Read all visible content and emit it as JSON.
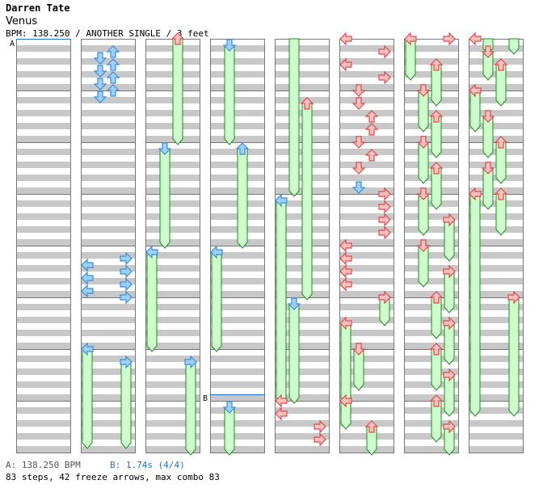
{
  "artist": "Darren Tate",
  "song": "Venus",
  "bpm_line": "BPM: 138.250 / ANOTHER SINGLE / 3 feet",
  "markers": {
    "a": "A",
    "b": "B"
  },
  "footer": {
    "bpm": "A: 138.250 BPM",
    "stop": "B: 1.74s (4/4)",
    "stats": "83 steps, 42 freeze arrows, max combo 83"
  },
  "colors": {
    "stripe": "#c8c8c8",
    "border": "#777777",
    "quarter_note": "#e04848",
    "eighth_note": "#3a8fd8",
    "freeze_fill": "#ccffcc",
    "freeze_border": "#228822",
    "marker_line": "#1f6fcf"
  },
  "chart_data": {
    "type": "step-chart",
    "lanes": [
      "left",
      "down",
      "up",
      "right"
    ],
    "columns": 8,
    "measures_per_column": 8,
    "notes": [
      {
        "col": 1,
        "lane": "up",
        "beat": 1,
        "kind": "8th"
      },
      {
        "col": 1,
        "lane": "down",
        "beat": 1.5,
        "kind": "8th"
      },
      {
        "col": 1,
        "lane": "up",
        "beat": 2,
        "kind": "8th"
      },
      {
        "col": 1,
        "lane": "down",
        "beat": 2.5,
        "kind": "8th"
      },
      {
        "col": 1,
        "lane": "up",
        "beat": 3,
        "kind": "8th"
      },
      {
        "col": 1,
        "lane": "down",
        "beat": 3.5,
        "kind": "8th"
      },
      {
        "col": 1,
        "lane": "up",
        "beat": 4,
        "kind": "8th"
      },
      {
        "col": 1,
        "lane": "down",
        "beat": 4.5,
        "kind": "8th"
      },
      {
        "col": 1,
        "lane": "right",
        "beat": 17,
        "kind": "8th"
      },
      {
        "col": 1,
        "lane": "left",
        "beat": 17.5,
        "kind": "8th"
      },
      {
        "col": 1,
        "lane": "right",
        "beat": 18,
        "kind": "8th"
      },
      {
        "col": 1,
        "lane": "left",
        "beat": 18.5,
        "kind": "8th"
      },
      {
        "col": 1,
        "lane": "right",
        "beat": 19,
        "kind": "8th"
      },
      {
        "col": 1,
        "lane": "left",
        "beat": 19.5,
        "kind": "8th"
      },
      {
        "col": 1,
        "lane": "right",
        "beat": 20,
        "kind": "8th"
      },
      {
        "col": 1,
        "lane": "left",
        "beat": 24,
        "kind": "8th",
        "freeze_to": 31.5
      },
      {
        "col": 1,
        "lane": "right",
        "beat": 25,
        "kind": "8th",
        "freeze_to": 31.5
      },
      {
        "col": 2,
        "lane": "up",
        "beat": 0,
        "kind": "4th",
        "freeze_to": 8
      },
      {
        "col": 2,
        "lane": "down",
        "beat": 8.5,
        "kind": "8th",
        "freeze_to": 16
      },
      {
        "col": 2,
        "lane": "left",
        "beat": 16.5,
        "kind": "8th",
        "freeze_to": 24
      },
      {
        "col": 2,
        "lane": "right",
        "beat": 25,
        "kind": "8th",
        "freeze_to": 32
      },
      {
        "col": 3,
        "lane": "down",
        "beat": 0.5,
        "kind": "8th",
        "freeze_to": 8
      },
      {
        "col": 3,
        "lane": "up",
        "beat": 8.5,
        "kind": "8th",
        "freeze_to": 16
      },
      {
        "col": 3,
        "lane": "left",
        "beat": 16.5,
        "kind": "8th",
        "freeze_to": 24
      },
      {
        "col": 3,
        "lane": "down",
        "beat": 28.5,
        "kind": "8th",
        "freeze_to": 32
      },
      {
        "col": 4,
        "lane": "down",
        "beat": 0,
        "kind": "none",
        "freeze_to": 12
      },
      {
        "col": 4,
        "lane": "up",
        "beat": 5,
        "kind": "4th",
        "freeze_to": 20
      },
      {
        "col": 4,
        "lane": "left",
        "beat": 12.5,
        "kind": "8th",
        "freeze_to": 28
      },
      {
        "col": 4,
        "lane": "down",
        "beat": 20.5,
        "kind": "8th",
        "freeze_to": 28
      },
      {
        "col": 4,
        "lane": "left",
        "beat": 28,
        "kind": "4th"
      },
      {
        "col": 4,
        "lane": "left",
        "beat": 29,
        "kind": "4th"
      },
      {
        "col": 4,
        "lane": "right",
        "beat": 30,
        "kind": "4th"
      },
      {
        "col": 4,
        "lane": "right",
        "beat": 31,
        "kind": "4th"
      },
      {
        "col": 5,
        "lane": "left",
        "beat": 0,
        "kind": "4th"
      },
      {
        "col": 5,
        "lane": "right",
        "beat": 1,
        "kind": "4th"
      },
      {
        "col": 5,
        "lane": "left",
        "beat": 2,
        "kind": "4th"
      },
      {
        "col": 5,
        "lane": "right",
        "beat": 3,
        "kind": "4th"
      },
      {
        "col": 5,
        "lane": "down",
        "beat": 4,
        "kind": "4th"
      },
      {
        "col": 5,
        "lane": "down",
        "beat": 5,
        "kind": "4th"
      },
      {
        "col": 5,
        "lane": "up",
        "beat": 6,
        "kind": "4th"
      },
      {
        "col": 5,
        "lane": "up",
        "beat": 7,
        "kind": "4th"
      },
      {
        "col": 5,
        "lane": "down",
        "beat": 8,
        "kind": "4th"
      },
      {
        "col": 5,
        "lane": "up",
        "beat": 9,
        "kind": "4th"
      },
      {
        "col": 5,
        "lane": "down",
        "beat": 10,
        "kind": "4th"
      },
      {
        "col": 5,
        "lane": "down",
        "beat": 11.5,
        "kind": "8th"
      },
      {
        "col": 5,
        "lane": "right",
        "beat": 12,
        "kind": "4th"
      },
      {
        "col": 5,
        "lane": "right",
        "beat": 13,
        "kind": "4th"
      },
      {
        "col": 5,
        "lane": "right",
        "beat": 14,
        "kind": "4th"
      },
      {
        "col": 5,
        "lane": "right",
        "beat": 15,
        "kind": "4th"
      },
      {
        "col": 5,
        "lane": "left",
        "beat": 16,
        "kind": "4th"
      },
      {
        "col": 5,
        "lane": "left",
        "beat": 17,
        "kind": "4th"
      },
      {
        "col": 5,
        "lane": "left",
        "beat": 18,
        "kind": "4th"
      },
      {
        "col": 5,
        "lane": "left",
        "beat": 19,
        "kind": "4th"
      },
      {
        "col": 5,
        "lane": "right",
        "beat": 20,
        "kind": "4th",
        "freeze_to": 22
      },
      {
        "col": 5,
        "lane": "left",
        "beat": 22,
        "kind": "4th",
        "freeze_to": 28
      },
      {
        "col": 5,
        "lane": "down",
        "beat": 24,
        "kind": "4th",
        "freeze_to": 27
      },
      {
        "col": 5,
        "lane": "left",
        "beat": 28,
        "kind": "4th",
        "freeze_to": 30
      },
      {
        "col": 5,
        "lane": "up",
        "beat": 30,
        "kind": "4th",
        "freeze_to": 32
      },
      {
        "col": 6,
        "lane": "left",
        "beat": 0,
        "kind": "4th",
        "freeze_to": 3
      },
      {
        "col": 6,
        "lane": "right",
        "beat": 0,
        "kind": "4th"
      },
      {
        "col": 6,
        "lane": "up",
        "beat": 2,
        "kind": "4th",
        "freeze_to": 5
      },
      {
        "col": 6,
        "lane": "down",
        "beat": 4,
        "kind": "4th",
        "freeze_to": 7
      },
      {
        "col": 6,
        "lane": "up",
        "beat": 6,
        "kind": "4th",
        "freeze_to": 9
      },
      {
        "col": 6,
        "lane": "down",
        "beat": 8,
        "kind": "4th",
        "freeze_to": 11
      },
      {
        "col": 6,
        "lane": "up",
        "beat": 10,
        "kind": "4th",
        "freeze_to": 13
      },
      {
        "col": 6,
        "lane": "down",
        "beat": 12,
        "kind": "4th",
        "freeze_to": 15
      },
      {
        "col": 6,
        "lane": "right",
        "beat": 14,
        "kind": "4th",
        "freeze_to": 17
      },
      {
        "col": 6,
        "lane": "down",
        "beat": 16,
        "kind": "4th",
        "freeze_to": 19
      },
      {
        "col": 6,
        "lane": "right",
        "beat": 18,
        "kind": "4th",
        "freeze_to": 21
      },
      {
        "col": 6,
        "lane": "up",
        "beat": 20,
        "kind": "4th",
        "freeze_to": 23
      },
      {
        "col": 6,
        "lane": "right",
        "beat": 22,
        "kind": "4th",
        "freeze_to": 25
      },
      {
        "col": 6,
        "lane": "up",
        "beat": 24,
        "kind": "4th",
        "freeze_to": 27
      },
      {
        "col": 6,
        "lane": "right",
        "beat": 26,
        "kind": "4th",
        "freeze_to": 29
      },
      {
        "col": 6,
        "lane": "up",
        "beat": 28,
        "kind": "4th",
        "freeze_to": 31
      },
      {
        "col": 6,
        "lane": "right",
        "beat": 30,
        "kind": "4th",
        "freeze_to": 32
      },
      {
        "col": 7,
        "lane": "left",
        "beat": 0,
        "kind": "4th"
      },
      {
        "col": 7,
        "lane": "down",
        "beat": 0,
        "kind": "none",
        "freeze_to": 1
      },
      {
        "col": 7,
        "lane": "right",
        "beat": 0,
        "kind": "none",
        "freeze_to": 1
      },
      {
        "col": 7,
        "lane": "down",
        "beat": 1,
        "kind": "4th",
        "freeze_to": 3
      },
      {
        "col": 7,
        "lane": "up",
        "beat": 2,
        "kind": "4th",
        "freeze_to": 5
      },
      {
        "col": 7,
        "lane": "left",
        "beat": 4,
        "kind": "4th",
        "freeze_to": 7
      },
      {
        "col": 7,
        "lane": "down",
        "beat": 6,
        "kind": "4th",
        "freeze_to": 9
      },
      {
        "col": 7,
        "lane": "up",
        "beat": 8,
        "kind": "4th",
        "freeze_to": 11
      },
      {
        "col": 7,
        "lane": "down",
        "beat": 10,
        "kind": "4th",
        "freeze_to": 13
      },
      {
        "col": 7,
        "lane": "up",
        "beat": 12,
        "kind": "4th",
        "freeze_to": 15
      },
      {
        "col": 7,
        "lane": "left",
        "beat": 12,
        "kind": "4th",
        "freeze_to": 29
      },
      {
        "col": 7,
        "lane": "right",
        "beat": 20,
        "kind": "4th",
        "freeze_to": 29
      }
    ]
  }
}
